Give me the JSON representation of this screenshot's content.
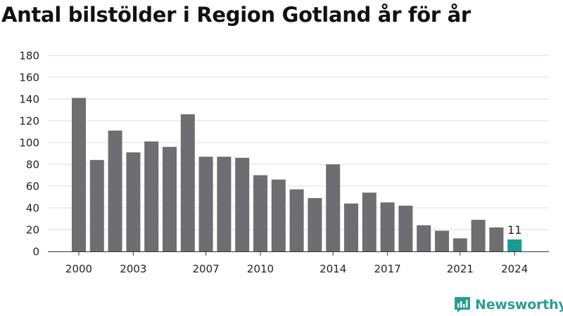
{
  "title": "Antal bilstölder i Region Gotland år för år",
  "brand": {
    "name": "Newsworthy",
    "logo_icon": "newsworthy-chart-logo-icon",
    "color": "#2a9d94"
  },
  "colors": {
    "bar": "#6e6d72",
    "highlight": "#1a9b93",
    "grid": "#dddddd",
    "axis": "#333333",
    "text": "#222222"
  },
  "chart_data": {
    "type": "bar",
    "title": "Antal bilstölder i Region Gotland år för år",
    "xlabel": "",
    "ylabel": "",
    "categories": [
      "2000",
      "2001",
      "2002",
      "2003",
      "2004",
      "2005",
      "2006",
      "2007",
      "2008",
      "2009",
      "2010",
      "2011",
      "2012",
      "2013",
      "2014",
      "2015",
      "2016",
      "2017",
      "2018",
      "2019",
      "2020",
      "2021",
      "2022",
      "2023",
      "2024"
    ],
    "values": [
      141,
      84,
      111,
      91,
      101,
      96,
      126,
      87,
      87,
      86,
      70,
      66,
      57,
      49,
      80,
      44,
      54,
      45,
      42,
      24,
      19,
      12,
      29,
      22,
      11
    ],
    "x_tick_labels": [
      "2000",
      "2003",
      "2007",
      "2010",
      "2014",
      "2017",
      "2021",
      "2024"
    ],
    "ylim": [
      0,
      180
    ],
    "y_ticks": [
      0,
      20,
      40,
      60,
      80,
      100,
      120,
      140,
      160,
      180
    ],
    "grid": true,
    "highlight_category": "2024",
    "data_labels": [
      {
        "category": "2024",
        "text": "11"
      }
    ]
  }
}
